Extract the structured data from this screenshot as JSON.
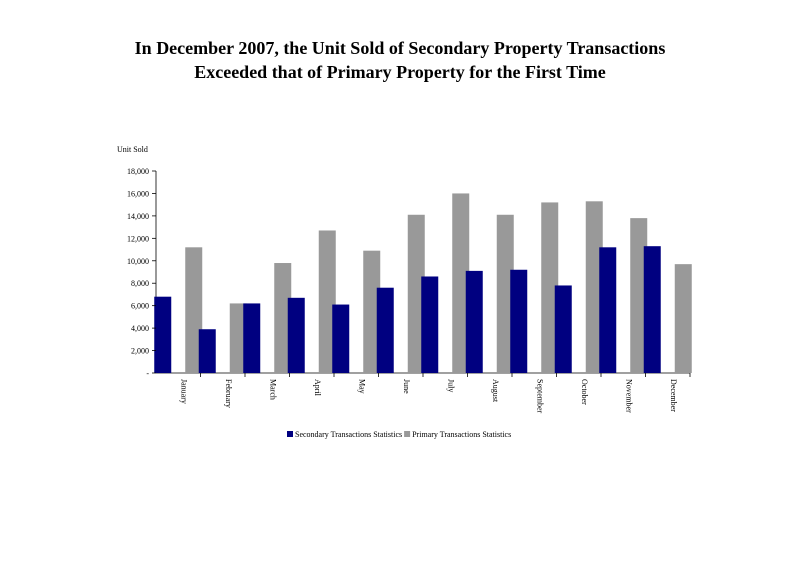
{
  "chart_data": {
    "type": "bar",
    "title": "In  December 2007, the Unit Sold of Secondary Property Transactions",
    "subtitle": "Exceeded that of Primary Property for the First Time",
    "ylabel": "Unit Sold",
    "xlabel": "",
    "ylim": [
      0,
      18000
    ],
    "yticks": [
      0,
      2000,
      4000,
      6000,
      8000,
      10000,
      12000,
      14000,
      16000,
      18000
    ],
    "ytick_labels": [
      "-",
      "2,000",
      "4,000",
      "6,000",
      "8,000",
      "10,000",
      "12,000",
      "14,000",
      "16,000",
      "18,000"
    ],
    "categories": [
      "January",
      "February",
      "March",
      "April",
      "May",
      "June",
      "July",
      "August",
      "September",
      "October",
      "November",
      "December"
    ],
    "series": [
      {
        "name": "Secondary Transactions Statistics",
        "color": "#000080",
        "values": [
          6800,
          3900,
          6200,
          6700,
          6100,
          7600,
          8600,
          9100,
          9200,
          7800,
          11200,
          11300
        ]
      },
      {
        "name": "Primary Transactions Statistics",
        "color": "#999999",
        "values": [
          11200,
          6200,
          9800,
          12700,
          10900,
          14100,
          16000,
          14100,
          15200,
          15300,
          13800,
          9700
        ]
      }
    ],
    "grid": false,
    "legend_position": "bottom"
  }
}
